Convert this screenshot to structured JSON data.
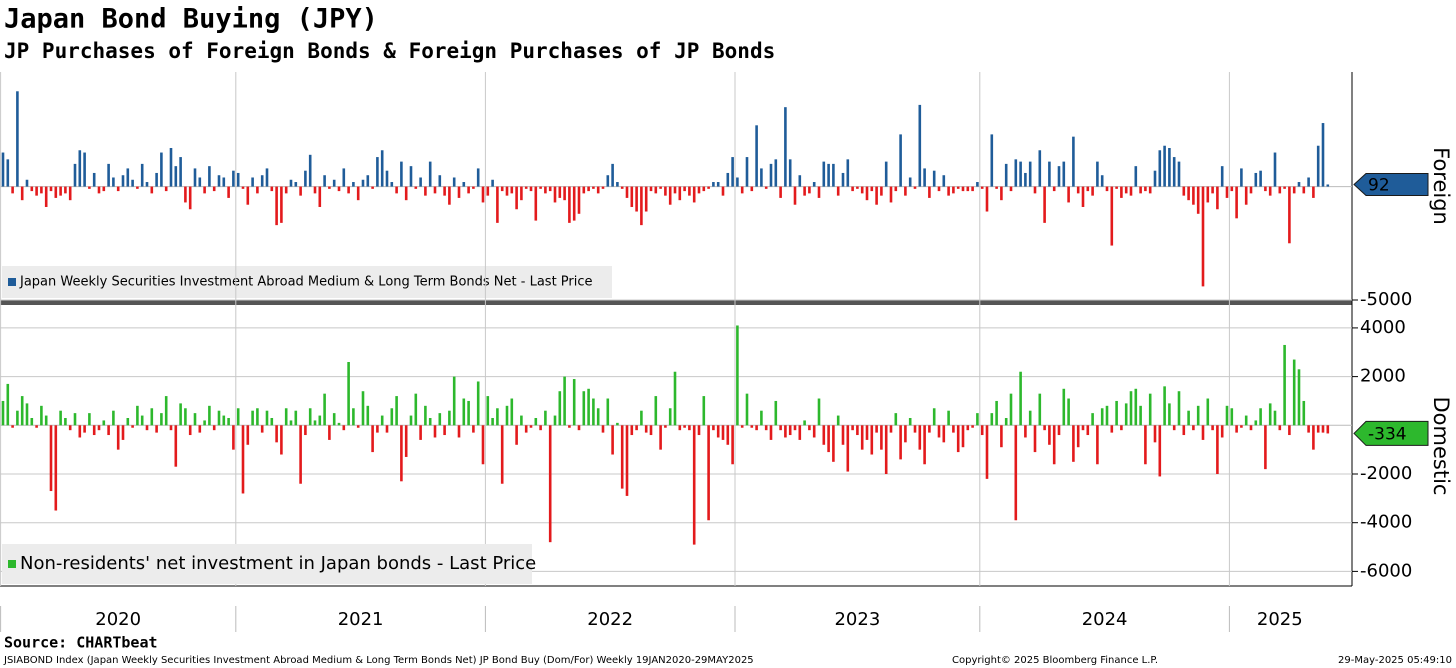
{
  "chart_data": [
    {
      "type": "bar",
      "title": "Japan Bond Buying (JPY)",
      "subtitle": "JP Purchases of Foreign Bonds & Foreign Purchases of JP Bonds",
      "axis_label": "Foreign",
      "ylim": [
        -5000,
        5050
      ],
      "yticks": [
        -5000
      ],
      "series": [
        {
          "name": "Japan Weekly Securities Investment Abroad Medium & Long Term Bonds Net - Last Price",
          "color": "#1f5c99",
          "negative_color": "#e31a1c",
          "values": [
            1500,
            1200,
            -300,
            4200,
            -600,
            300,
            -200,
            -400,
            -300,
            -900,
            -200,
            -500,
            -400,
            -300,
            -600,
            1000,
            1600,
            1500,
            -100,
            600,
            -300,
            -200,
            1000,
            400,
            -200,
            500,
            800,
            300,
            -100,
            1000,
            200,
            -300,
            600,
            1500,
            -200,
            1700,
            900,
            1300,
            -700,
            -1000,
            800,
            400,
            -300,
            900,
            -200,
            500,
            400,
            -500,
            700,
            600,
            -100,
            -800,
            400,
            -300,
            500,
            800,
            -200,
            -1700,
            -1600,
            -300,
            300,
            200,
            -400,
            700,
            1400,
            -300,
            -900,
            500,
            -100,
            300,
            -200,
            800,
            -300,
            200,
            -600,
            300,
            500,
            -100,
            1300,
            1600,
            700,
            200,
            -300,
            1100,
            -600,
            900,
            -100,
            400,
            -400,
            1100,
            -300,
            500,
            -400,
            -800,
            400,
            -500,
            200,
            -300,
            -100,
            800,
            -700,
            -400,
            300,
            -1600,
            -200,
            -400,
            -300,
            -1000,
            -600,
            -100,
            -200,
            -1500,
            -100,
            -300,
            -200,
            -700,
            -500,
            -600,
            -1600,
            -1500,
            -1200,
            -300,
            -200,
            -100,
            -300,
            -100,
            500,
            1000,
            200,
            -100,
            -500,
            -900,
            -1100,
            -1700,
            -1100,
            -200,
            -300,
            -100,
            -400,
            -800,
            -300,
            -600,
            -200,
            -400,
            -700,
            -300,
            -200,
            -100,
            200,
            200,
            -400,
            600,
            1300,
            400,
            -300,
            1300,
            -200,
            2700,
            800,
            -100,
            1000,
            1200,
            -500,
            3500,
            1200,
            -800,
            500,
            -400,
            -300,
            200,
            -500,
            1100,
            1000,
            1000,
            -400,
            600,
            1200,
            -200,
            -100,
            -300,
            -600,
            -200,
            -800,
            -400,
            1100,
            -700,
            -200,
            2300,
            -400,
            400,
            -100,
            3600,
            800,
            -500,
            700,
            -200,
            500,
            -400,
            -300,
            -100,
            -200,
            -200,
            -200,
            200,
            -100,
            -1100,
            2300,
            -100,
            -600,
            1000,
            -200,
            1200,
            1100,
            600,
            1100,
            -300,
            1600,
            -1600,
            1100,
            -200,
            900,
            1100,
            -700,
            2200,
            -300,
            -900,
            -200,
            -400,
            1100,
            500,
            -200,
            -2600,
            -100,
            -500,
            -300,
            -400,
            900,
            -300,
            -200,
            -300,
            700,
            1600,
            1800,
            1700,
            1300,
            1100,
            -400,
            -600,
            -800,
            -1200,
            -4400,
            -700,
            -300,
            -1000,
            900,
            -500,
            -200,
            -1400,
            800,
            -800,
            -300,
            600,
            700,
            -200,
            -400,
            1500,
            -300,
            -100,
            -2500,
            -300,
            200,
            -300,
            400,
            -500,
            1800,
            2800,
            92
          ]
        }
      ]
    },
    {
      "type": "bar",
      "axis_label": "Domestic",
      "ylim": [
        -6600,
        4900
      ],
      "yticks": [
        -6000,
        -4000,
        -2000,
        2000,
        4000
      ],
      "xticks": [
        {
          "value": 0,
          "label": "2020"
        },
        {
          "value": 49,
          "label": "2021"
        },
        {
          "value": 101,
          "label": "2022"
        },
        {
          "value": 153,
          "label": "2023"
        },
        {
          "value": 204,
          "label": "2024"
        },
        {
          "value": 256,
          "label": "2025"
        }
      ],
      "series": [
        {
          "name": "Non-residents' net investment in Japan bonds - Last Price",
          "color": "#2db82d",
          "negative_color": "#e31a1c",
          "values": [
            1000,
            1700,
            -100,
            600,
            1200,
            900,
            300,
            -100,
            800,
            400,
            -2700,
            -3500,
            600,
            300,
            -200,
            500,
            -500,
            -300,
            500,
            -400,
            -200,
            200,
            -400,
            600,
            -1000,
            -600,
            300,
            -100,
            800,
            400,
            -200,
            700,
            -300,
            500,
            1200,
            -200,
            -1700,
            900,
            700,
            -400,
            500,
            -300,
            200,
            800,
            -200,
            600,
            400,
            300,
            -1000,
            700,
            -2800,
            -800,
            600,
            700,
            -300,
            600,
            300,
            -700,
            -1200,
            700,
            200,
            600,
            -2400,
            -400,
            700,
            200,
            400,
            1300,
            -600,
            500,
            100,
            -200,
            2600,
            700,
            -100,
            1400,
            800,
            -1100,
            -300,
            400,
            -300,
            700,
            1200,
            -2300,
            -1300,
            400,
            1300,
            -600,
            800,
            300,
            -500,
            500,
            -400,
            600,
            2000,
            -500,
            1100,
            1000,
            -300,
            1800,
            -1600,
            1200,
            300,
            700,
            -2400,
            800,
            1100,
            -800,
            400,
            -300,
            -100,
            300,
            -200,
            600,
            -4800,
            400,
            1400,
            2000,
            -100,
            1900,
            -200,
            1400,
            1500,
            1100,
            700,
            -300,
            1100,
            -1200,
            100,
            -2600,
            -2900,
            -400,
            -200,
            600,
            -300,
            -400,
            1200,
            -1000,
            -100,
            700,
            2200,
            -200,
            -100,
            -200,
            -4900,
            -400,
            1200,
            -3900,
            -200,
            -500,
            -600,
            -800,
            -1600,
            4100,
            -100,
            1300,
            -100,
            -200,
            600,
            -200,
            -600,
            1000,
            -200,
            -500,
            -400,
            -200,
            -600,
            200,
            -200,
            -500,
            1100,
            -800,
            -1100,
            -1500,
            400,
            -800,
            -1900,
            -200,
            -400,
            -1000,
            -600,
            -1200,
            -300,
            -1000,
            -2000,
            -300,
            500,
            -1400,
            -700,
            300,
            -300,
            -1000,
            -1600,
            -300,
            700,
            -500,
            -700,
            600,
            -300,
            -1100,
            -900,
            -200,
            -100,
            500,
            -400,
            -2200,
            500,
            1000,
            -900,
            300,
            1300,
            -3900,
            2200,
            -500,
            600,
            -1100,
            1300,
            -200,
            -800,
            -1600,
            -400,
            1500,
            1100,
            -1500,
            -900,
            -200,
            -400,
            500,
            -1600,
            700,
            800,
            -300,
            1000,
            -200,
            900,
            1400,
            1500,
            800,
            -1600,
            1300,
            -700,
            -2100,
            1600,
            900,
            -200,
            1400,
            -400,
            600,
            -200,
            800,
            -600,
            1100,
            -200,
            -2000,
            -500,
            800,
            700,
            -300,
            -100,
            400,
            -200,
            200,
            700,
            -1800,
            900,
            600,
            -200,
            3300,
            -400,
            2700,
            2300,
            1000,
            -300,
            -1000,
            -300,
            -300,
            -334
          ]
        }
      ]
    }
  ],
  "footer": {
    "source": "Source: CHARTbeat",
    "description": "JSIABOND Index (Japan Weekly Securities Investment Abroad Medium & Long Term Bonds Net) JP Bond Buy (Dom/For)  Weekly 19JAN2020-29MAY2025",
    "copyright": "Copyright© 2025 Bloomberg Finance L.P.",
    "timestamp": "29-May-2025 05:49:10"
  }
}
